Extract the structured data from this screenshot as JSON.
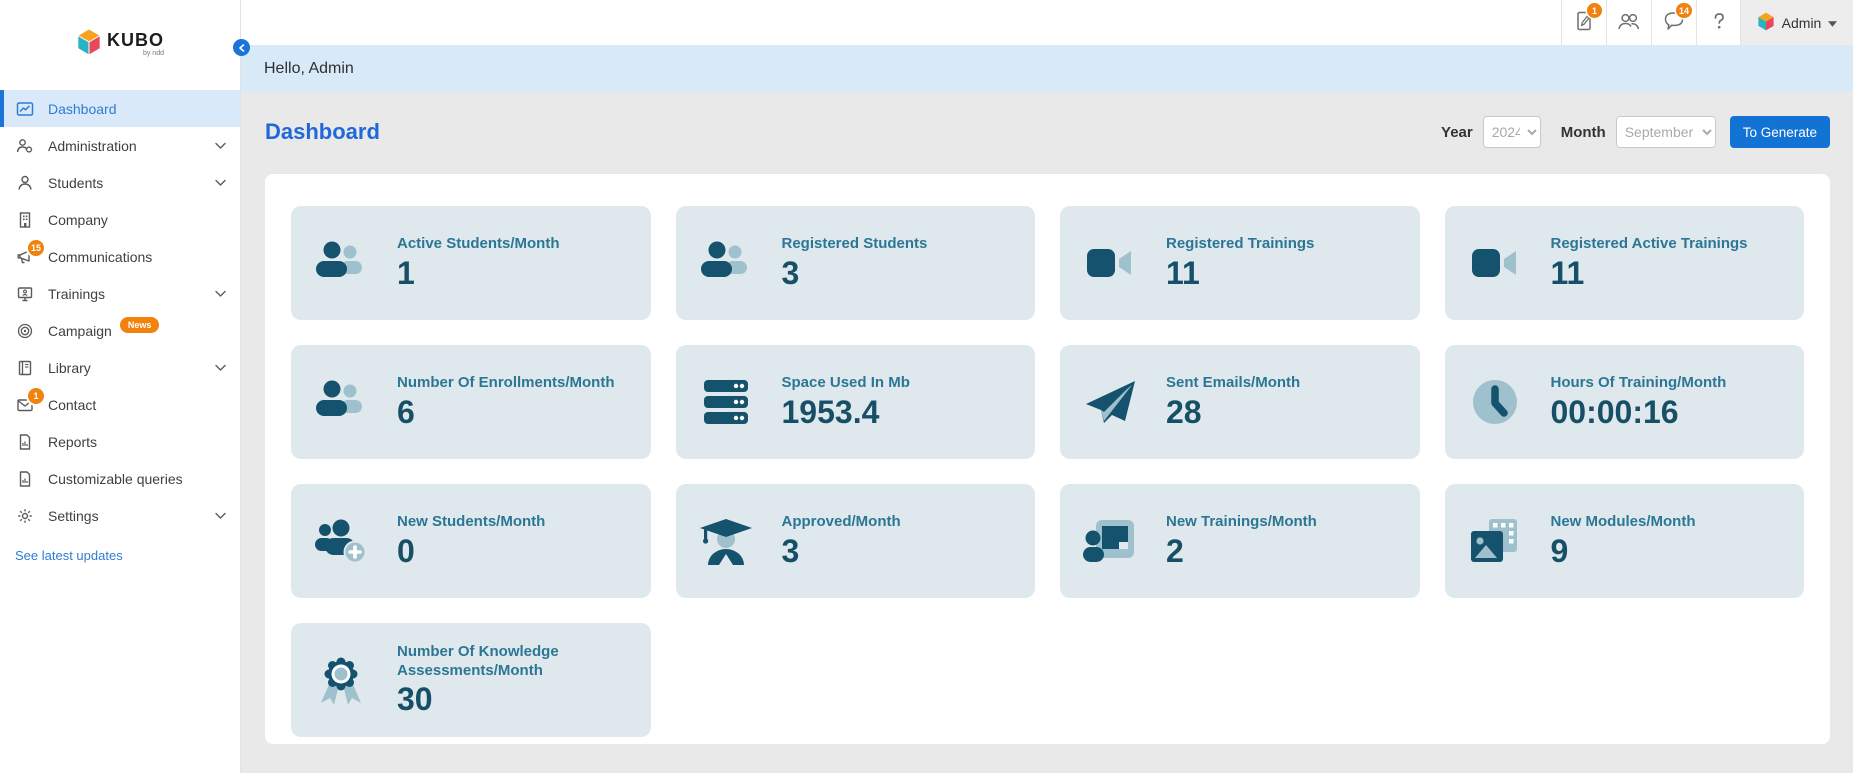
{
  "brand": {
    "name": "KUBO",
    "sub": "by ndd"
  },
  "sidebar": {
    "items": [
      {
        "label": "Dashboard",
        "icon": "dashboard-icon",
        "active": true
      },
      {
        "label": "Administration",
        "icon": "administration-icon",
        "chevron": true
      },
      {
        "label": "Students",
        "icon": "students-icon",
        "chevron": true
      },
      {
        "label": "Company",
        "icon": "company-icon"
      },
      {
        "label": "Communications",
        "icon": "communications-icon",
        "badge": "15"
      },
      {
        "label": "Trainings",
        "icon": "trainings-icon",
        "chevron": true
      },
      {
        "label": "Campaign",
        "icon": "campaign-icon",
        "pill": "News"
      },
      {
        "label": "Library",
        "icon": "library-icon",
        "chevron": true
      },
      {
        "label": "Contact",
        "icon": "contact-icon",
        "badge": "1"
      },
      {
        "label": "Reports",
        "icon": "reports-icon"
      },
      {
        "label": "Customizable queries",
        "icon": "queries-icon"
      },
      {
        "label": "Settings",
        "icon": "settings-icon",
        "chevron": true
      }
    ],
    "footer_link": "See latest updates"
  },
  "topbar": {
    "icons": [
      {
        "name": "survey-icon",
        "badge": "1"
      },
      {
        "name": "users-icon"
      },
      {
        "name": "chat-icon",
        "badge": "14"
      },
      {
        "name": "help-icon"
      }
    ],
    "user": {
      "label": "Admin"
    }
  },
  "greeting": "Hello, Admin",
  "page": {
    "title": "Dashboard",
    "filters": {
      "year_label": "Year",
      "year_value": "2024",
      "month_label": "Month",
      "month_value": "September",
      "generate_label": "To Generate"
    }
  },
  "colors": {
    "accent_blue": "#1c74d9",
    "badge_orange": "#f0820d",
    "greeting_bg": "#d8e9f8",
    "card_bg": "#dfe9ed",
    "card_label": "#2c7695",
    "card_value": "#174f67",
    "icon_dark": "#15526e",
    "icon_light": "#9fc0cd"
  },
  "cards": [
    {
      "label": "Active Students/Month",
      "value": "1",
      "icon": "users-group-icon"
    },
    {
      "label": "Registered Students",
      "value": "3",
      "icon": "users-group-icon"
    },
    {
      "label": "Registered Trainings",
      "value": "11",
      "icon": "video-icon"
    },
    {
      "label": "Registered Active Trainings",
      "value": "11",
      "icon": "video-icon"
    },
    {
      "label": "Number Of Enrollments/Month",
      "value": "6",
      "icon": "users-group-icon"
    },
    {
      "label": "Space Used In Mb",
      "value": "1953.4",
      "icon": "server-icon"
    },
    {
      "label": "Sent Emails/Month",
      "value": "28",
      "icon": "send-icon"
    },
    {
      "label": "Hours Of Training/Month",
      "value": "00:00:16",
      "icon": "clock-icon"
    },
    {
      "label": "New Students/Month",
      "value": "0",
      "icon": "user-plus-icon"
    },
    {
      "label": "Approved/Month",
      "value": "3",
      "icon": "graduate-icon"
    },
    {
      "label": "New Trainings/Month",
      "value": "2",
      "icon": "presenter-icon"
    },
    {
      "label": "New Modules/Month",
      "value": "9",
      "icon": "modules-icon"
    },
    {
      "label": "Number Of Knowledge Assessments/Month",
      "value": "30",
      "icon": "medal-icon"
    }
  ]
}
